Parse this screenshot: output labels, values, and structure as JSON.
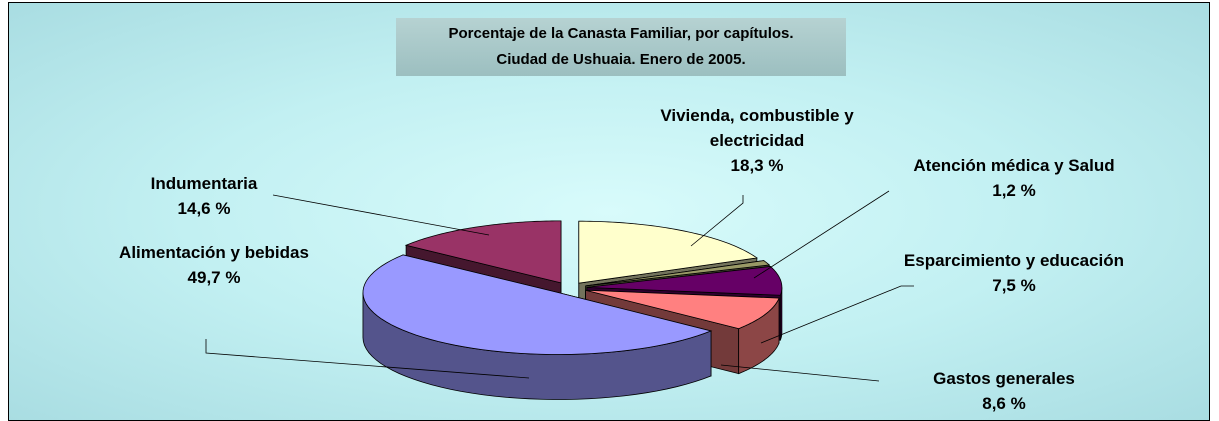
{
  "chart_data": {
    "type": "pie3d",
    "title": "Porcentaje de la Canasta Familiar, por capítulos.",
    "subtitle": "Ciudad de Ushuaia. Enero de 2005.",
    "categories": [
      "Vivienda, combustible y electricidad",
      "Atención médica y Salud",
      "Esparcimiento y educación",
      "Gastos generales",
      "Alimentación y bebidas",
      "Indumentaria"
    ],
    "values": [
      18.3,
      1.2,
      7.5,
      8.6,
      49.7,
      14.6
    ],
    "value_labels": [
      "18,3 %",
      "1,2 %",
      "7,5 %",
      "8,6 %",
      "49,7 %",
      "14,6 %"
    ],
    "colors": [
      "#ffffcc",
      "#999966",
      "#660066",
      "#ff8080",
      "#9999ff",
      "#993366"
    ]
  }
}
